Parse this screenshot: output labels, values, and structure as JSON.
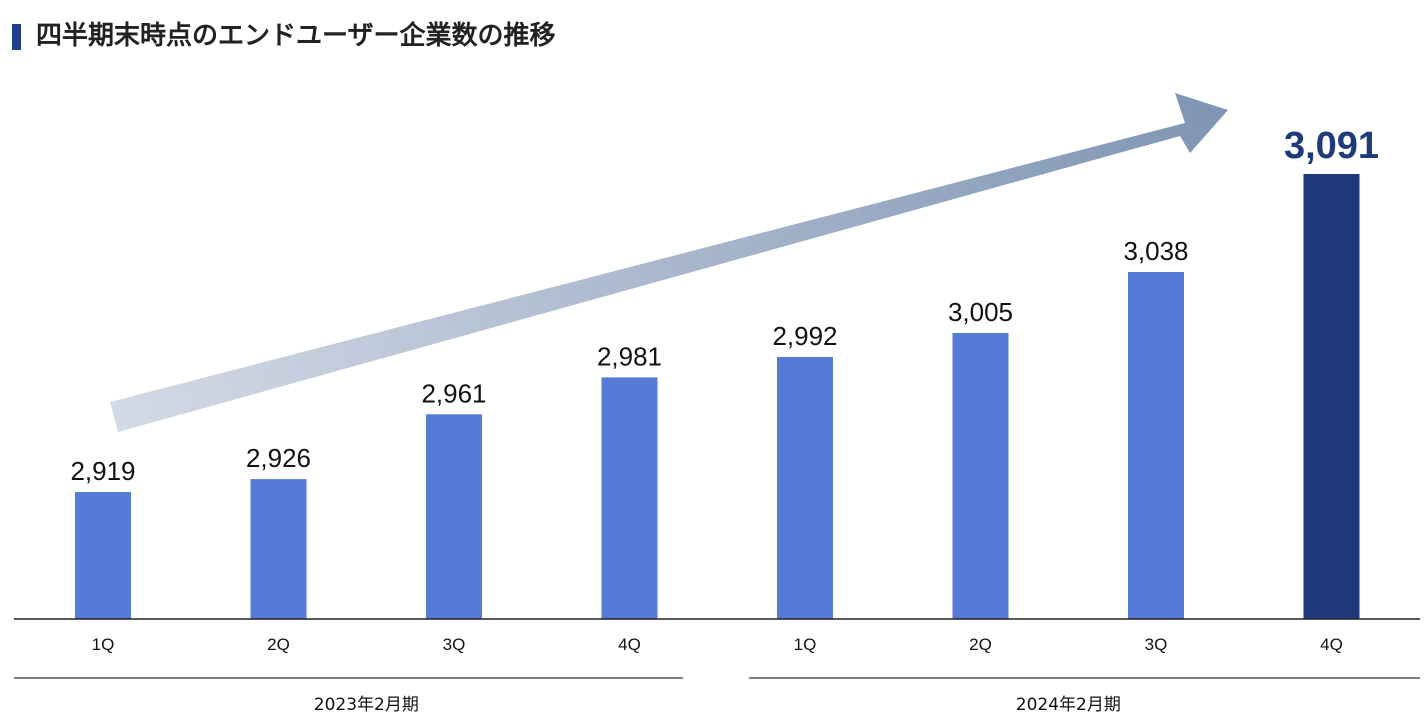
{
  "header": {
    "title": "四半期末時点のエンドユーザー企業数の推移"
  },
  "colors": {
    "accent_bar": "#1f3f8c",
    "bar": "#547bd6",
    "bar_highlight": "#1f3a7a",
    "arrow_start": "#d3dae6",
    "arrow_end": "#7f95b3"
  },
  "chart_data": {
    "type": "bar",
    "title": "四半期末時点のエンドユーザー企業数の推移",
    "categories": [
      "1Q",
      "2Q",
      "3Q",
      "4Q",
      "1Q",
      "2Q",
      "3Q",
      "4Q"
    ],
    "values": [
      2919,
      2926,
      2961,
      2981,
      2992,
      3005,
      3038,
      3091
    ],
    "value_labels": [
      "2,919",
      "2,926",
      "2,961",
      "2,981",
      "2,992",
      "3,005",
      "3,038",
      "3,091"
    ],
    "highlight_index": 7,
    "groups": [
      {
        "label": "2023年2月期",
        "start": 0,
        "end": 3
      },
      {
        "label": "2024年2月期",
        "start": 4,
        "end": 7
      }
    ],
    "xlabel": "",
    "ylabel": "",
    "grid": false,
    "legend": "none",
    "trend_arrow": true
  }
}
